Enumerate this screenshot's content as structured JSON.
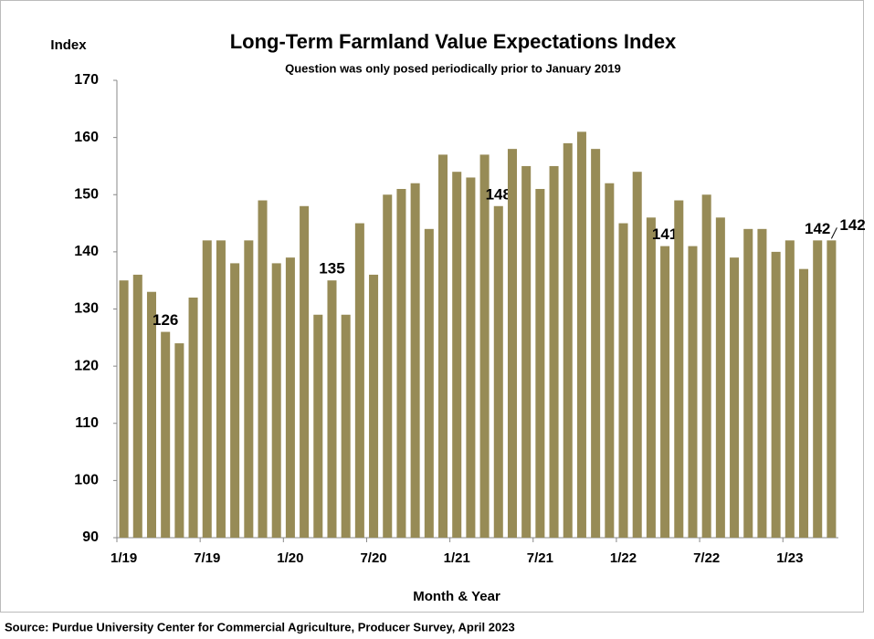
{
  "chart_data": {
    "type": "bar",
    "title": "Long-Term Farmland Value Expectations Index",
    "subtitle": "Question was only posed periodically prior to January 2019",
    "y_label": "Index",
    "x_label": "Month & Year",
    "source": "Source: Purdue University Center for Commercial Agriculture, Producer Survey, April 2023",
    "categories": [
      "1/19",
      null,
      null,
      null,
      null,
      null,
      "7/19",
      null,
      null,
      null,
      null,
      null,
      "1/20",
      null,
      null,
      null,
      null,
      null,
      "7/20",
      null,
      null,
      null,
      null,
      null,
      "1/21",
      null,
      null,
      null,
      null,
      null,
      "7/21",
      null,
      null,
      null,
      null,
      null,
      "1/22",
      null,
      null,
      null,
      null,
      null,
      "7/22",
      null,
      null,
      null,
      null,
      null,
      "1/23",
      null,
      null,
      null
    ],
    "values": [
      135,
      136,
      133,
      126,
      124,
      132,
      142,
      142,
      138,
      142,
      149,
      138,
      139,
      148,
      129,
      135,
      129,
      145,
      136,
      150,
      151,
      152,
      144,
      157,
      154,
      153,
      157,
      148,
      158,
      155,
      151,
      155,
      159,
      161,
      158,
      152,
      145,
      154,
      146,
      141,
      149,
      141,
      150,
      146,
      139,
      144,
      144,
      140,
      142,
      137,
      142,
      142
    ],
    "labeled_points": [
      3,
      15,
      27,
      39,
      50,
      51
    ],
    "color": "#978b56",
    "ylim": [
      90,
      170
    ],
    "yticks": [
      90,
      100,
      110,
      120,
      130,
      140,
      150,
      160,
      170
    ],
    "grid": false
  }
}
